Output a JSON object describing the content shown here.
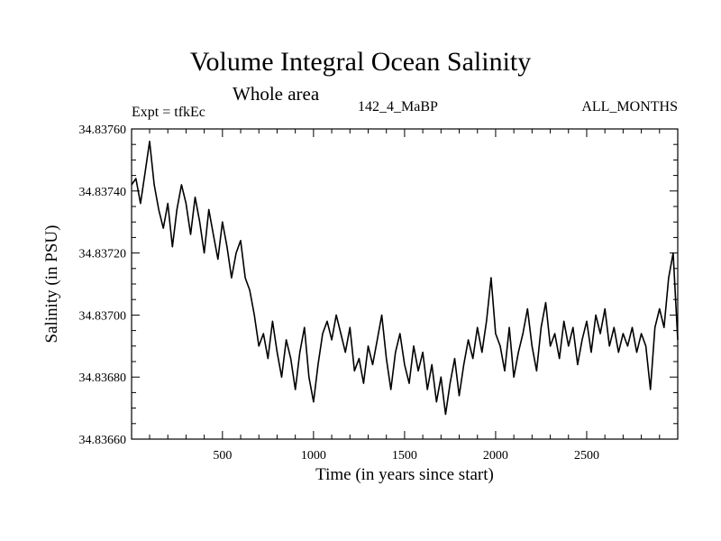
{
  "chart_data": {
    "type": "line",
    "title": "Volume Integral Ocean Salinity",
    "subtitle": "Whole area",
    "annotations": {
      "left": "Expt = tfkEc",
      "center": "142_4_MaBP",
      "right": "ALL_MONTHS"
    },
    "xlabel": "Time (in years since start)",
    "ylabel": "Salinity (in PSU)",
    "xlim": [
      1,
      3000
    ],
    "ylim": [
      34.8366,
      34.8376
    ],
    "x_ticks": [
      500,
      1000,
      1500,
      2000,
      2500
    ],
    "y_ticks": [
      "34.83660",
      "34.83680",
      "34.83700",
      "34.83720",
      "34.83740",
      "34.83760"
    ],
    "grid": false,
    "series": [
      {
        "x": [
          1,
          25,
          50,
          75,
          100,
          125,
          150,
          175,
          200,
          225,
          250,
          275,
          300,
          325,
          350,
          375,
          400,
          425,
          450,
          475,
          500,
          525,
          550,
          575,
          600,
          625,
          650,
          675,
          700,
          725,
          750,
          775,
          800,
          825,
          850,
          875,
          900,
          925,
          950,
          975,
          1000,
          1025,
          1050,
          1075,
          1100,
          1125,
          1150,
          1175,
          1200,
          1225,
          1250,
          1275,
          1300,
          1325,
          1350,
          1375,
          1400,
          1425,
          1450,
          1475,
          1500,
          1525,
          1550,
          1575,
          1600,
          1625,
          1650,
          1675,
          1700,
          1725,
          1750,
          1775,
          1800,
          1825,
          1850,
          1875,
          1900,
          1925,
          1950,
          1975,
          2000,
          2025,
          2050,
          2075,
          2100,
          2125,
          2150,
          2175,
          2200,
          2225,
          2250,
          2275,
          2300,
          2325,
          2350,
          2375,
          2400,
          2425,
          2450,
          2475,
          2500,
          2525,
          2550,
          2575,
          2600,
          2625,
          2650,
          2675,
          2700,
          2725,
          2750,
          2775,
          2800,
          2825,
          2850,
          2875,
          2900,
          2925,
          2950,
          2975,
          3000
        ],
        "values": [
          34.83742,
          34.83744,
          34.83736,
          34.83746,
          34.83756,
          34.83742,
          34.83734,
          34.83728,
          34.83736,
          34.83722,
          34.83734,
          34.83742,
          34.83736,
          34.83726,
          34.83738,
          34.8373,
          34.8372,
          34.83734,
          34.83726,
          34.83718,
          34.8373,
          34.83722,
          34.83712,
          34.8372,
          34.83724,
          34.83712,
          34.83708,
          34.837,
          34.8369,
          34.83694,
          34.83686,
          34.83698,
          34.83688,
          34.8368,
          34.83692,
          34.83686,
          34.83676,
          34.83688,
          34.83696,
          34.8368,
          34.83672,
          34.83684,
          34.83694,
          34.83698,
          34.83692,
          34.837,
          34.83694,
          34.83688,
          34.83696,
          34.83682,
          34.83686,
          34.83678,
          34.8369,
          34.83684,
          34.83692,
          34.837,
          34.83686,
          34.83676,
          34.83688,
          34.83694,
          34.83684,
          34.83678,
          34.8369,
          34.83682,
          34.83688,
          34.83676,
          34.83684,
          34.83672,
          34.8368,
          34.83668,
          34.83678,
          34.83686,
          34.83674,
          34.83684,
          34.83692,
          34.83686,
          34.83696,
          34.83688,
          34.83698,
          34.83712,
          34.83694,
          34.8369,
          34.83682,
          34.83696,
          34.8368,
          34.83688,
          34.83694,
          34.83702,
          34.8369,
          34.83682,
          34.83696,
          34.83704,
          34.8369,
          34.83694,
          34.83686,
          34.83698,
          34.8369,
          34.83696,
          34.83684,
          34.83692,
          34.83698,
          34.83688,
          34.837,
          34.83694,
          34.83702,
          34.8369,
          34.83696,
          34.83688,
          34.83694,
          34.8369,
          34.83696,
          34.83688,
          34.83694,
          34.8369,
          34.83676,
          34.83696,
          34.83702,
          34.83696,
          34.83712,
          34.8372,
          34.83692
        ]
      }
    ]
  }
}
